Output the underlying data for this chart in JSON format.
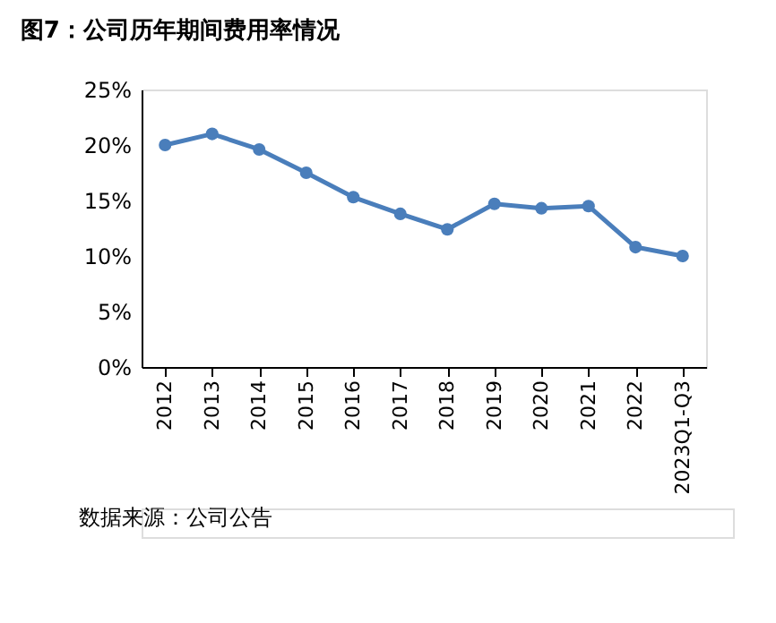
{
  "chart_data": {
    "type": "line",
    "title": "图7：公司历年期间费用率情况",
    "categories": [
      "2012",
      "2013",
      "2014",
      "2015",
      "2016",
      "2017",
      "2018",
      "2019",
      "2020",
      "2021",
      "2022",
      "2023Q1-Q3"
    ],
    "series": [
      {
        "color": "#4a7ebb",
        "values": [
          20.0,
          21.0,
          19.6,
          17.5,
          15.3,
          13.8,
          12.4,
          14.7,
          14.3,
          14.5,
          10.8,
          10.0
        ]
      }
    ],
    "ylim": [
      0,
      25
    ],
    "yticks": [
      {
        "value": 0,
        "label": "0%"
      },
      {
        "value": 5,
        "label": "5%"
      },
      {
        "value": 10,
        "label": "10%"
      },
      {
        "value": 15,
        "label": "15%"
      },
      {
        "value": 20,
        "label": "20%"
      },
      {
        "value": 25,
        "label": "25%"
      }
    ],
    "grid": false,
    "marker": "circle",
    "line_style": "solid",
    "annotations": [
      "数据来源：公司公告"
    ]
  }
}
